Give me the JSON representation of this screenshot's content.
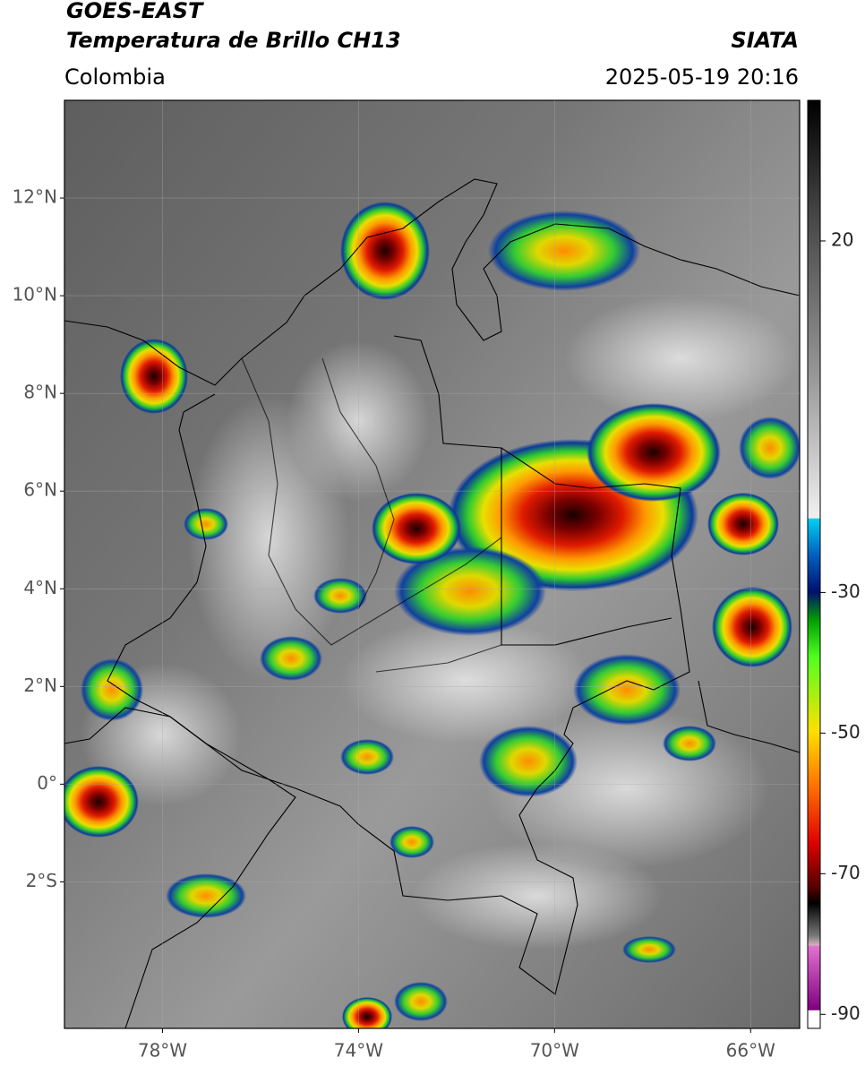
{
  "header": {
    "title": "GOES-EAST",
    "subtitle": "Temperatura de Brillo CH13",
    "source": "SIATA",
    "region": "Colombia",
    "datetime": "2025-05-19 20:16"
  },
  "map": {
    "lat_lim": [
      -5,
      14
    ],
    "lon_lim": [
      -80,
      -65
    ],
    "lat_ticks": [
      {
        "value": 12,
        "label": "12°N"
      },
      {
        "value": 10,
        "label": "10°N"
      },
      {
        "value": 8,
        "label": "8°N"
      },
      {
        "value": 6,
        "label": "6°N"
      },
      {
        "value": 4,
        "label": "4°N"
      },
      {
        "value": 2,
        "label": "2°N"
      },
      {
        "value": 0,
        "label": "0°"
      },
      {
        "value": -2,
        "label": "2°S"
      }
    ],
    "lon_ticks": [
      {
        "value": -78,
        "label": "78°W"
      },
      {
        "value": -74,
        "label": "74°W"
      },
      {
        "value": -70,
        "label": "70°W"
      },
      {
        "value": -66,
        "label": "66°W"
      }
    ]
  },
  "colorbar": {
    "lim": [
      -92,
      40
    ],
    "ticks": [
      20,
      -30,
      -50,
      -70,
      -90
    ]
  }
}
